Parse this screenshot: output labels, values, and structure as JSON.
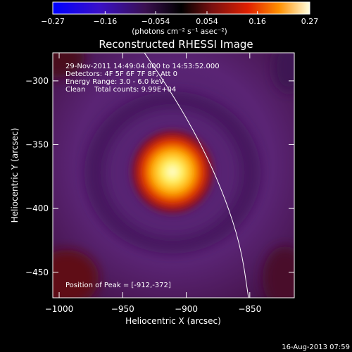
{
  "chart_data": {
    "type": "heatmap",
    "title": "Reconstructed RHESSI Image",
    "xlabel": "Heliocentric X (arcsec)",
    "ylabel": "Heliocentric Y (arcsec)",
    "xlim": [
      -1005,
      -815
    ],
    "ylim": [
      -470,
      -278
    ],
    "x_ticks": [
      -1000,
      -950,
      -900,
      -850
    ],
    "y_ticks": [
      -300,
      -350,
      -400,
      -450
    ],
    "colorbar": {
      "min": -0.27,
      "max": 0.27,
      "ticks": [
        -0.27,
        -0.16,
        -0.054,
        0.054,
        0.16,
        0.27
      ],
      "tick_labels": [
        "-0.27",
        "-0.16",
        "-0.054",
        "0.054",
        "0.16",
        "0.27"
      ],
      "units_label": "(photons cm⁻² s⁻¹ asec⁻²)",
      "colormap": "rhessi-thermal"
    },
    "annotations": [
      "29-Nov-2011 14:49:04.000 to 14:53:52.000",
      "Detectors: 4F 5F 6F 7F 8F, Att 0",
      "Energy Range: 3.0 - 6.0 keV",
      "Clean    Total counts: 9.99E+04"
    ],
    "peak_label": "Position of Peak = [-912,-372]",
    "peak": {
      "x": -912,
      "y": -372,
      "value": 0.27
    },
    "limb_curve": [
      {
        "x": -935,
        "y": -275
      },
      {
        "x": -911,
        "y": -310
      },
      {
        "x": -888,
        "y": -350
      },
      {
        "x": -870,
        "y": -390
      },
      {
        "x": -857,
        "y": -430
      },
      {
        "x": -851,
        "y": -470
      }
    ],
    "background_level": 0.03
  },
  "footer": {
    "date_stamp": "16-Aug-2013 07:59"
  },
  "colors": {
    "background": "#000000",
    "axis": "#ffffff",
    "limb": "#ffffff",
    "purple_bg": "#55206f",
    "dark_red_corner": "#5a0a0a"
  }
}
